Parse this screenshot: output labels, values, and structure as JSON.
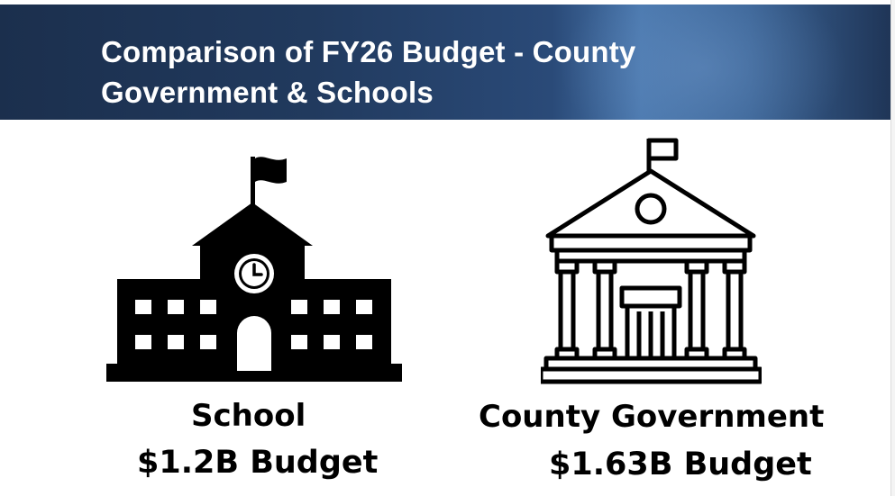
{
  "slide": {
    "title_line1": "Comparison of FY26 Budget - County",
    "title_line2": "Government & Schools"
  },
  "school": {
    "label": "School",
    "budget": "$1.2B Budget",
    "icon": "school-building-icon"
  },
  "county": {
    "label": "County Government",
    "budget": "$1.63B Budget",
    "icon": "government-building-icon"
  },
  "colors": {
    "banner_dark": "#1b2f4d",
    "banner_light": "#4a78ae",
    "title_text": "#ffffff",
    "body_text": "#000000"
  }
}
